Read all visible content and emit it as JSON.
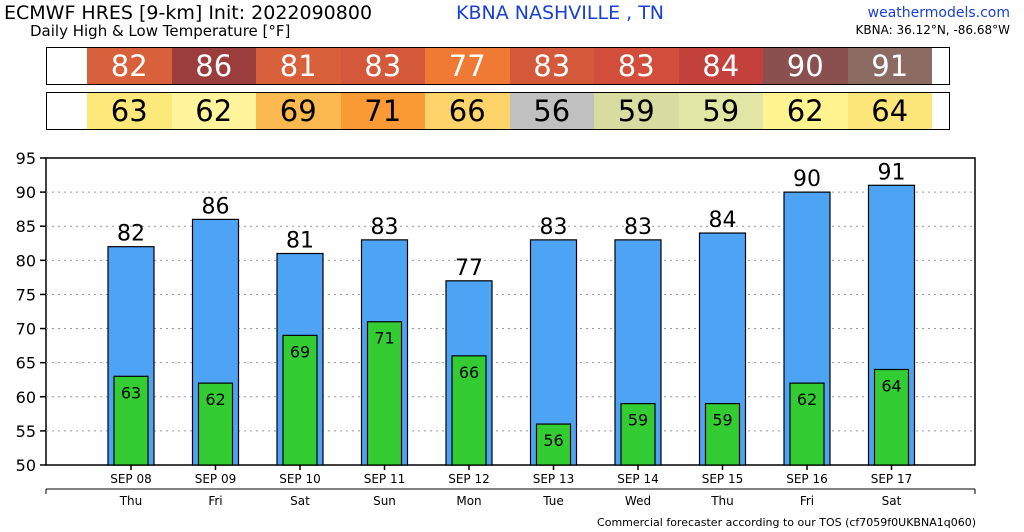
{
  "header": {
    "title": "ECMWF HRES [9-km] Init: 2022090800",
    "subtitle": "Daily High & Low Temperature [°F]",
    "station": "KBNA NASHVILLE      , TN",
    "site": "weathermodels.com",
    "coords": "KBNA: 36.12°N, -86.68°W"
  },
  "footer": "Commercial forecaster according to our TOS (cf7059f0UKBNA1q060)",
  "colors": {
    "high_bar": "#4ea4f4",
    "low_bar": "#33cc33",
    "high_strip": [
      "#d8603a",
      "#9b3d3d",
      "#d8603a",
      "#d4583a",
      "#f07a34",
      "#d4583a",
      "#d24e3a",
      "#c3413a",
      "#8a5050",
      "#8c6b62"
    ],
    "low_strip": [
      "#fde97a",
      "#fff49c",
      "#fcb94f",
      "#f99a35",
      "#fdd36a",
      "#c0c0c0",
      "#d8dca0",
      "#e2e6a4",
      "#fff490",
      "#fde77a"
    ]
  },
  "chart_data": {
    "type": "bar",
    "categories": [
      "SEP 08",
      "SEP 09",
      "SEP 10",
      "SEP 11",
      "SEP 12",
      "SEP 13",
      "SEP 14",
      "SEP 15",
      "SEP 16",
      "SEP 17"
    ],
    "weekdays": [
      "Thu",
      "Fri",
      "Sat",
      "Sun",
      "Mon",
      "Tue",
      "Wed",
      "Thu",
      "Fri",
      "Sat"
    ],
    "series": [
      {
        "key": "high",
        "values": [
          82,
          86,
          81,
          83,
          77,
          83,
          83,
          84,
          90,
          91
        ]
      },
      {
        "key": "low",
        "values": [
          63,
          62,
          69,
          71,
          66,
          56,
          59,
          59,
          62,
          64
        ]
      }
    ],
    "ylim": [
      50,
      95
    ],
    "yticks": [
      50,
      55,
      60,
      65,
      70,
      75,
      80,
      85,
      90,
      95
    ],
    "grid": true
  }
}
